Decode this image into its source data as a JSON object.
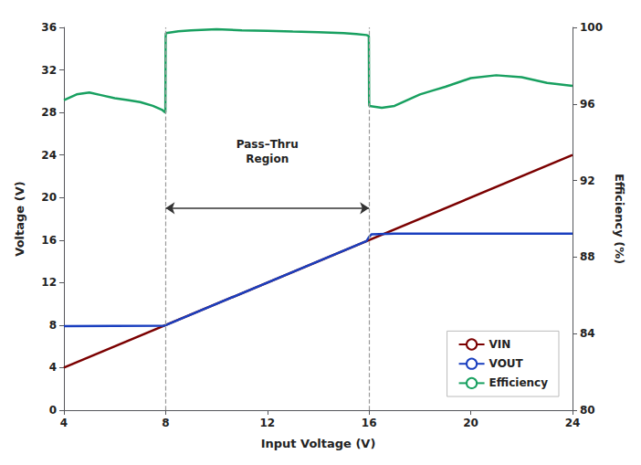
{
  "chart_data": {
    "type": "line",
    "xlabel": "Input Voltage (V)",
    "ylabel": "Voltage (V)",
    "y2label": "Efficiency (%)",
    "xlim": [
      4,
      24
    ],
    "xticks": [
      4,
      8,
      12,
      16,
      20,
      24
    ],
    "ylim": [
      0,
      36
    ],
    "yticks": [
      0,
      4,
      8,
      12,
      16,
      20,
      24,
      28,
      32,
      36
    ],
    "y2lim": [
      80,
      100
    ],
    "y2ticks": [
      80,
      84,
      88,
      92,
      96,
      100
    ],
    "grid": false,
    "legend": "lower right",
    "series": [
      {
        "name": "VIN",
        "color": "#7B0000",
        "x": [
          4,
          24
        ],
        "values": [
          4,
          24
        ]
      },
      {
        "name": "VOUT",
        "color": "#1A3FBF",
        "x": [
          4.0,
          7.95,
          8.0,
          8.05,
          15.9,
          16.0,
          16.1,
          17.0,
          24.0
        ],
        "values": [
          7.9,
          7.95,
          8.0,
          8.05,
          15.9,
          16.3,
          16.55,
          16.6,
          16.6
        ]
      },
      {
        "name": "Efficiency",
        "color": "#18A060",
        "axis": "y2",
        "x": [
          4.0,
          4.5,
          5.0,
          5.5,
          6.0,
          6.5,
          7.0,
          7.5,
          7.85,
          7.99,
          8.0,
          8.01,
          8.5,
          9.0,
          10.0,
          11.0,
          12.0,
          13.0,
          14.0,
          15.0,
          15.5,
          15.9,
          15.99,
          16.0,
          16.01,
          16.5,
          17.0,
          17.5,
          18.0,
          18.5,
          19.0,
          20.0,
          21.0,
          22.0,
          23.0,
          24.0
        ],
        "values": [
          96.2,
          96.5,
          96.6,
          96.45,
          96.3,
          96.2,
          96.1,
          95.9,
          95.7,
          95.55,
          99.5,
          99.7,
          99.8,
          99.85,
          99.9,
          99.85,
          99.82,
          99.78,
          99.75,
          99.7,
          99.65,
          99.6,
          99.55,
          96.2,
          95.9,
          95.8,
          95.9,
          96.2,
          96.5,
          96.7,
          96.9,
          97.35,
          97.5,
          97.4,
          97.1,
          96.95
        ]
      }
    ],
    "vlines": {
      "x": [
        8,
        16
      ],
      "color": "#999999",
      "line_style": "dashed"
    },
    "arrow": {
      "x": [
        8,
        16
      ],
      "y": 19,
      "color": "#333333"
    },
    "annotations": [
      {
        "text": "Pass–Thru\nRegion",
        "x": 12,
        "y": 22.5
      }
    ]
  }
}
